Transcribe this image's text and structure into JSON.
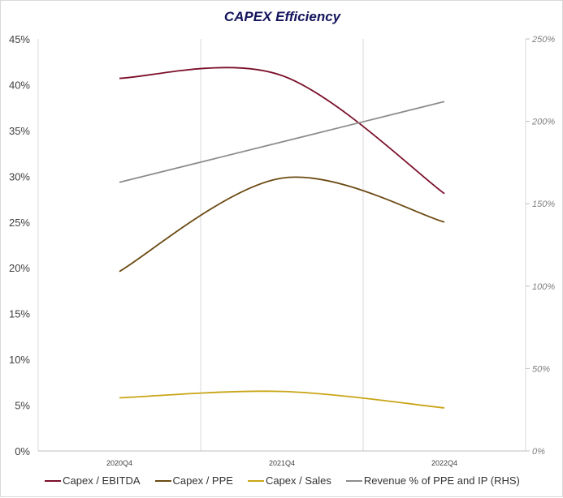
{
  "chart_data": {
    "type": "line",
    "title": "CAPEX Efficiency",
    "categories": [
      "2020Q4",
      "2021Q4",
      "2022Q4"
    ],
    "y_left": {
      "ticks": [
        "0%",
        "5%",
        "10%",
        "15%",
        "20%",
        "25%",
        "30%",
        "35%",
        "40%",
        "45%"
      ],
      "range": [
        0,
        45
      ]
    },
    "y_right": {
      "ticks": [
        "0%",
        "50%",
        "100%",
        "150%",
        "200%",
        "250%"
      ],
      "range": [
        0,
        250
      ]
    },
    "grid": "vertical category gridlines",
    "smoothed": true,
    "legend_position": "bottom",
    "series": [
      {
        "name": "Capex / EBITDA",
        "axis": "left",
        "color": "#7b0f2a",
        "values": [
          40.7,
          41.0,
          28.1
        ]
      },
      {
        "name": "Capex / PPE",
        "axis": "left",
        "color": "#6b4a12",
        "values": [
          19.6,
          29.8,
          25.0
        ]
      },
      {
        "name": "Capex / Sales",
        "axis": "left",
        "color": "#c9a516",
        "values": [
          5.8,
          6.5,
          4.7
        ]
      },
      {
        "name": "Revenue % of PPE and IP (RHS)",
        "axis": "right",
        "color": "#8c8c8c",
        "values": [
          163,
          187.5,
          212
        ]
      }
    ]
  }
}
